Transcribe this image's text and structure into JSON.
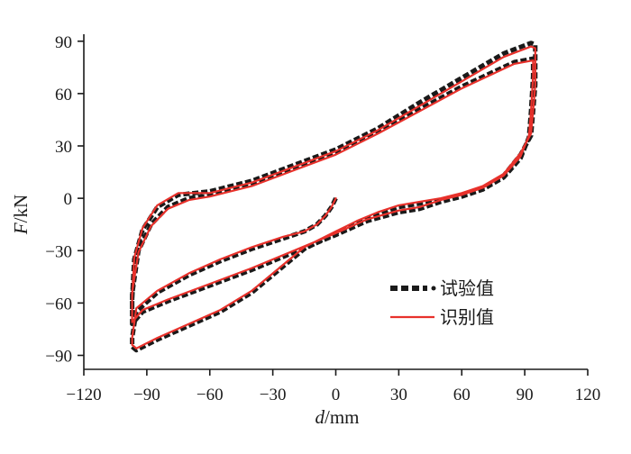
{
  "chart_data": {
    "type": "line",
    "title": "",
    "xlabel": {
      "italic": "d",
      "unit": "/mm"
    },
    "ylabel": {
      "italic": "F",
      "unit": "/kN"
    },
    "xlim": [
      -120,
      120
    ],
    "ylim": [
      -98,
      94
    ],
    "xticks": [
      -120,
      -90,
      -60,
      -30,
      0,
      30,
      60,
      90,
      120
    ],
    "yticks": [
      -90,
      -60,
      -30,
      0,
      30,
      60,
      90
    ],
    "xtick_labels": [
      "−120",
      "−90",
      "−60",
      "−30",
      "0",
      "30",
      "60",
      "90",
      "120"
    ],
    "ytick_labels": [
      "−90",
      "−60",
      "−30",
      "0",
      "30",
      "60",
      "90"
    ],
    "legend_position": "lower-right",
    "colors": {
      "test": "#1a1a1a",
      "identified": "#e8312b",
      "axis": "#1a1a1a"
    },
    "series": [
      {
        "name": "试验值",
        "style": "dashed-dotted",
        "loops": [
          [
            [
              0,
              0
            ],
            [
              -2,
              -5
            ],
            [
              -5,
              -10
            ],
            [
              -9,
              -15
            ],
            [
              -15,
              -19
            ],
            [
              -25,
              -23
            ],
            [
              -40,
              -29
            ],
            [
              -55,
              -36
            ],
            [
              -70,
              -44
            ],
            [
              -85,
              -54
            ],
            [
              -95,
              -65
            ],
            [
              -97,
              -80
            ],
            [
              -97,
              -85
            ],
            [
              -95,
              -87
            ],
            [
              -85,
              -81
            ],
            [
              -70,
              -73
            ],
            [
              -55,
              -65
            ],
            [
              -40,
              -54
            ],
            [
              -28,
              -42
            ],
            [
              -15,
              -29
            ],
            [
              0,
              -20
            ],
            [
              10,
              -14
            ],
            [
              20,
              -9
            ],
            [
              30,
              -5
            ],
            [
              40,
              -3
            ],
            [
              50,
              -1
            ],
            [
              60,
              2
            ],
            [
              70,
              6
            ],
            [
              80,
              13
            ],
            [
              88,
              25
            ],
            [
              93,
              36
            ],
            [
              94,
              50
            ],
            [
              95,
              65
            ],
            [
              95,
              88
            ],
            [
              93,
              89
            ],
            [
              80,
              83
            ],
            [
              60,
              69
            ],
            [
              40,
              55
            ],
            [
              20,
              40
            ],
            [
              0,
              28
            ],
            [
              -20,
              19
            ],
            [
              -40,
              10
            ],
            [
              -60,
              4
            ],
            [
              -75,
              2
            ],
            [
              -85,
              -5
            ],
            [
              -92,
              -18
            ],
            [
              -96,
              -35
            ],
            [
              -97,
              -58
            ],
            [
              -97,
              -72
            ],
            [
              -92,
              -65
            ],
            [
              -80,
              -59
            ],
            [
              -60,
              -50
            ],
            [
              -40,
              -41
            ],
            [
              -20,
              -31
            ],
            [
              0,
              -21
            ],
            [
              15,
              -13
            ],
            [
              30,
              -8
            ],
            [
              40,
              -6
            ],
            [
              50,
              -2
            ],
            [
              60,
              1
            ],
            [
              70,
              5
            ],
            [
              80,
              12
            ],
            [
              88,
              23
            ],
            [
              92,
              35
            ],
            [
              93,
              50
            ],
            [
              94,
              70
            ],
            [
              94,
              80
            ],
            [
              85,
              78
            ],
            [
              60,
              64
            ],
            [
              40,
              51
            ],
            [
              20,
              38
            ],
            [
              0,
              26
            ],
            [
              -20,
              17
            ],
            [
              -40,
              8
            ],
            [
              -60,
              2
            ],
            [
              -70,
              0
            ],
            [
              -80,
              -5
            ],
            [
              -88,
              -15
            ],
            [
              -94,
              -30
            ],
            [
              -97,
              -55
            ],
            [
              -97,
              -66
            ]
          ]
        ]
      },
      {
        "name": "识别值",
        "style": "solid",
        "loops": [
          [
            [
              0,
              0
            ],
            [
              -2,
              -5
            ],
            [
              -5,
              -10
            ],
            [
              -9,
              -15
            ],
            [
              -15,
              -19
            ],
            [
              -25,
              -22
            ],
            [
              -40,
              -28
            ],
            [
              -55,
              -35
            ],
            [
              -70,
              -43
            ],
            [
              -85,
              -53
            ],
            [
              -95,
              -63
            ],
            [
              -97,
              -80
            ],
            [
              -97,
              -84
            ],
            [
              -95,
              -86
            ],
            [
              -85,
              -80
            ],
            [
              -70,
              -72
            ],
            [
              -55,
              -64
            ],
            [
              -40,
              -53
            ],
            [
              -28,
              -41
            ],
            [
              -15,
              -28
            ],
            [
              0,
              -19
            ],
            [
              10,
              -13
            ],
            [
              20,
              -8
            ],
            [
              30,
              -4
            ],
            [
              40,
              -2
            ],
            [
              50,
              0
            ],
            [
              60,
              3
            ],
            [
              70,
              7
            ],
            [
              80,
              14
            ],
            [
              88,
              26
            ],
            [
              93,
              37
            ],
            [
              94,
              50
            ],
            [
              95,
              65
            ],
            [
              95,
              86
            ],
            [
              93,
              87
            ],
            [
              80,
              81
            ],
            [
              60,
              67
            ],
            [
              40,
              53
            ],
            [
              20,
              39
            ],
            [
              0,
              27
            ],
            [
              -20,
              18
            ],
            [
              -40,
              9
            ],
            [
              -60,
              3
            ],
            [
              -75,
              3
            ],
            [
              -85,
              -4
            ],
            [
              -92,
              -17
            ],
            [
              -96,
              -34
            ],
            [
              -97,
              -57
            ],
            [
              -97,
              -71
            ],
            [
              -92,
              -64
            ],
            [
              -80,
              -58
            ],
            [
              -60,
              -49
            ],
            [
              -40,
              -40
            ],
            [
              -20,
              -30
            ],
            [
              0,
              -20
            ],
            [
              15,
              -12
            ],
            [
              30,
              -7
            ],
            [
              40,
              -5
            ],
            [
              50,
              -1
            ],
            [
              60,
              2
            ],
            [
              70,
              6
            ],
            [
              80,
              13
            ],
            [
              88,
              24
            ],
            [
              92,
              36
            ],
            [
              93,
              50
            ],
            [
              94,
              70
            ],
            [
              94,
              79
            ],
            [
              85,
              77
            ],
            [
              60,
              63
            ],
            [
              40,
              50
            ],
            [
              20,
              37
            ],
            [
              0,
              25
            ],
            [
              -20,
              16
            ],
            [
              -40,
              7
            ],
            [
              -60,
              1
            ],
            [
              -70,
              -1
            ],
            [
              -80,
              -6
            ],
            [
              -88,
              -16
            ],
            [
              -94,
              -31
            ],
            [
              -97,
              -54
            ],
            [
              -97,
              -65
            ]
          ]
        ]
      }
    ]
  }
}
